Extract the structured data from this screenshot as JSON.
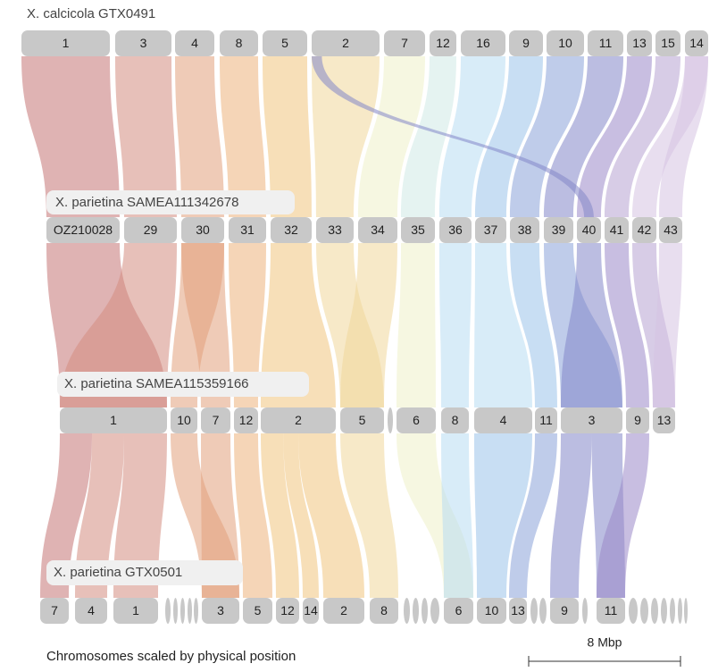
{
  "genomes": [
    {
      "label": "X. calcicola GTX0491",
      "chromosomes": [
        "1",
        "3",
        "4",
        "8",
        "5",
        "2",
        "7",
        "12",
        "16",
        "9",
        "10",
        "11",
        "13",
        "15",
        "14"
      ]
    },
    {
      "label": "X. parietina SAMEA111342678",
      "chromosomes": [
        "OZ210028",
        "29",
        "30",
        "31",
        "32",
        "33",
        "34",
        "35",
        "36",
        "37",
        "38",
        "39",
        "40",
        "41",
        "42",
        "43"
      ]
    },
    {
      "label": "X. parietina SAMEA115359166",
      "chromosomes": [
        "1",
        "10",
        "7",
        "12",
        "2",
        "5",
        "6",
        "8",
        "4",
        "11",
        "3",
        "9",
        "13"
      ]
    },
    {
      "label": "X. parietina GTX0501",
      "chromosomes": [
        "7",
        "4",
        "1",
        "3",
        "5",
        "12",
        "14",
        "2",
        "8",
        "6",
        "10",
        "13",
        "9",
        "11"
      ]
    }
  ],
  "footer": "Chromosomes scaled by physical position",
  "scale_bar": "8 Mbp"
}
